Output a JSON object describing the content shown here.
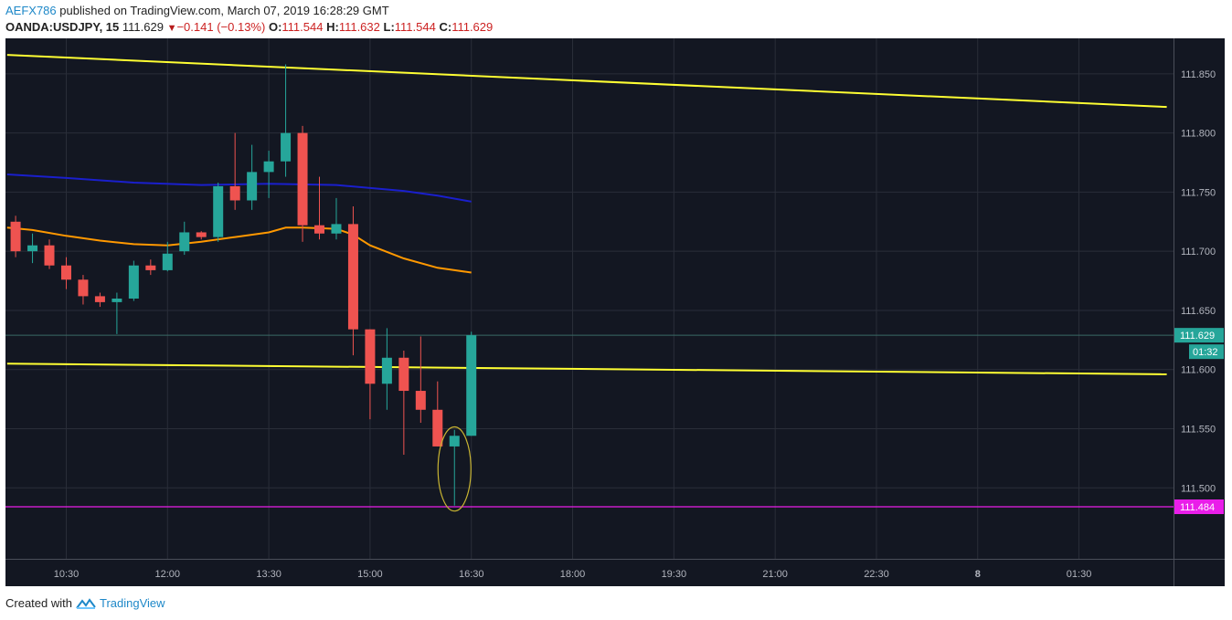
{
  "header": {
    "author": "AEFX786",
    "published": "published on TradingView.com, March 07, 2019 16:28:29 GMT",
    "symbol": "OANDA:USDJPY, 15",
    "last": "111.629",
    "change": "−0.141 (−0.13%)",
    "o_label": "O:",
    "o_value": "111.544",
    "h_label": "H:",
    "h_value": "111.632",
    "l_label": "L:",
    "l_value": "111.544",
    "c_label": "C:",
    "c_value": "111.629"
  },
  "footer": {
    "created": "Created with",
    "brand": "TradingView"
  },
  "colors": {
    "background": "#131722",
    "grid": "#2a2e39",
    "up": "#26a69a",
    "down": "#ef5350",
    "trendline": "#ffff33",
    "sma_slow": "#1a1fcc",
    "sma_fast": "#ff9800",
    "support": "#e91ee9",
    "ellipse": "#c8b432",
    "axis_text": "#b2b5be"
  },
  "chart_data": {
    "type": "candlestick",
    "title": "OANDA:USDJPY, 15",
    "ylim": [
      111.44,
      111.88
    ],
    "y_ticks": [
      "111.850",
      "111.800",
      "111.750",
      "111.700",
      "111.650",
      "111.600",
      "111.550",
      "111.500"
    ],
    "x_ticks": [
      {
        "label": "10:30",
        "t": 10.5
      },
      {
        "label": "12:00",
        "t": 12.0
      },
      {
        "label": "13:30",
        "t": 13.5
      },
      {
        "label": "15:00",
        "t": 15.0
      },
      {
        "label": "16:30",
        "t": 16.5
      },
      {
        "label": "18:00",
        "t": 18.0
      },
      {
        "label": "19:30",
        "t": 19.5
      },
      {
        "label": "21:00",
        "t": 21.0
      },
      {
        "label": "22:30",
        "t": 22.5
      },
      {
        "label": "8",
        "t": 24.0
      },
      {
        "label": "01:30",
        "t": 25.5
      }
    ],
    "xlim": [
      9.6,
      26.9
    ],
    "candles": [
      {
        "t": 9.75,
        "o": 111.725,
        "h": 111.73,
        "l": 111.695,
        "c": 111.7
      },
      {
        "t": 10.0,
        "o": 111.7,
        "h": 111.715,
        "l": 111.69,
        "c": 111.705
      },
      {
        "t": 10.25,
        "o": 111.705,
        "h": 111.71,
        "l": 111.685,
        "c": 111.688
      },
      {
        "t": 10.5,
        "o": 111.688,
        "h": 111.695,
        "l": 111.668,
        "c": 111.676
      },
      {
        "t": 10.75,
        "o": 111.676,
        "h": 111.68,
        "l": 111.655,
        "c": 111.662
      },
      {
        "t": 11.0,
        "o": 111.662,
        "h": 111.665,
        "l": 111.653,
        "c": 111.657
      },
      {
        "t": 11.25,
        "o": 111.657,
        "h": 111.665,
        "l": 111.63,
        "c": 111.66
      },
      {
        "t": 11.5,
        "o": 111.66,
        "h": 111.692,
        "l": 111.658,
        "c": 111.688
      },
      {
        "t": 11.75,
        "o": 111.688,
        "h": 111.693,
        "l": 111.68,
        "c": 111.684
      },
      {
        "t": 12.0,
        "o": 111.684,
        "h": 111.708,
        "l": 111.683,
        "c": 111.698
      },
      {
        "t": 12.25,
        "o": 111.7,
        "h": 111.725,
        "l": 111.697,
        "c": 111.716
      },
      {
        "t": 12.5,
        "o": 111.716,
        "h": 111.717,
        "l": 111.71,
        "c": 111.712
      },
      {
        "t": 12.75,
        "o": 111.712,
        "h": 111.758,
        "l": 111.708,
        "c": 111.755
      },
      {
        "t": 13.0,
        "o": 111.755,
        "h": 111.8,
        "l": 111.735,
        "c": 111.743
      },
      {
        "t": 13.25,
        "o": 111.743,
        "h": 111.79,
        "l": 111.735,
        "c": 111.767
      },
      {
        "t": 13.5,
        "o": 111.767,
        "h": 111.785,
        "l": 111.745,
        "c": 111.776
      },
      {
        "t": 13.75,
        "o": 111.776,
        "h": 111.858,
        "l": 111.763,
        "c": 111.8
      },
      {
        "t": 14.0,
        "o": 111.8,
        "h": 111.806,
        "l": 111.708,
        "c": 111.722
      },
      {
        "t": 14.25,
        "o": 111.722,
        "h": 111.763,
        "l": 111.71,
        "c": 111.715
      },
      {
        "t": 14.5,
        "o": 111.715,
        "h": 111.745,
        "l": 111.71,
        "c": 111.723
      },
      {
        "t": 14.75,
        "o": 111.723,
        "h": 111.738,
        "l": 111.612,
        "c": 111.634
      },
      {
        "t": 15.0,
        "o": 111.634,
        "h": 111.634,
        "l": 111.558,
        "c": 111.588
      },
      {
        "t": 15.25,
        "o": 111.588,
        "h": 111.635,
        "l": 111.566,
        "c": 111.61
      },
      {
        "t": 15.5,
        "o": 111.61,
        "h": 111.616,
        "l": 111.528,
        "c": 111.582
      },
      {
        "t": 15.75,
        "o": 111.582,
        "h": 111.628,
        "l": 111.555,
        "c": 111.566
      },
      {
        "t": 16.0,
        "o": 111.566,
        "h": 111.59,
        "l": 111.535,
        "c": 111.535
      },
      {
        "t": 16.25,
        "o": 111.535,
        "h": 111.549,
        "l": 111.485,
        "c": 111.544
      },
      {
        "t": 16.5,
        "o": 111.544,
        "h": 111.632,
        "l": 111.544,
        "c": 111.629
      }
    ],
    "sma_fast": {
      "t": [
        9.625,
        10.0,
        10.5,
        11.0,
        11.5,
        12.0,
        12.5,
        13.0,
        13.5,
        13.75,
        14.0,
        14.5,
        14.75,
        15.0,
        15.5,
        16.0,
        16.25,
        16.5
      ],
      "v": [
        111.72,
        111.718,
        111.713,
        111.709,
        111.706,
        111.705,
        111.708,
        111.712,
        111.716,
        111.72,
        111.72,
        111.719,
        111.714,
        111.705,
        111.694,
        111.686,
        111.684,
        111.682
      ]
    },
    "sma_slow": {
      "t": [
        9.625,
        10.5,
        11.5,
        12.5,
        13.5,
        14.5,
        15.5,
        16.0,
        16.5
      ],
      "v": [
        111.765,
        111.762,
        111.758,
        111.756,
        111.757,
        111.756,
        111.751,
        111.747,
        111.742
      ]
    },
    "trendlines": [
      {
        "t": [
          9.625,
          26.8
        ],
        "v": [
          111.866,
          111.822
        ]
      },
      {
        "t": [
          9.625,
          26.8
        ],
        "v": [
          111.605,
          111.596
        ]
      }
    ],
    "support_level": 111.484,
    "price_label": "111.629",
    "countdown": "01:32",
    "support_label": "111.484",
    "highlight": {
      "t": 16.25,
      "v_low": 111.485,
      "v_high": 111.55
    }
  }
}
